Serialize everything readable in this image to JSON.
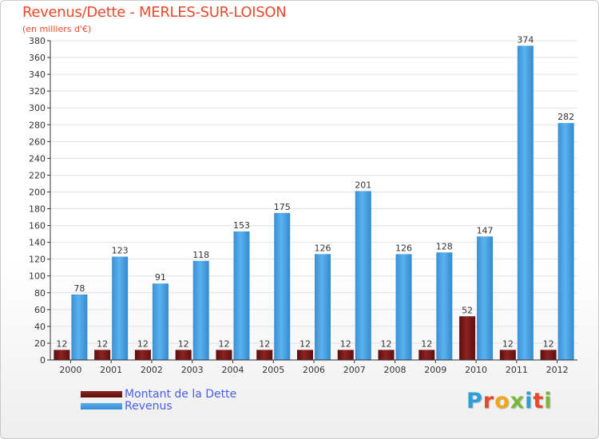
{
  "header": {
    "title": "Revenus/Dette - MERLES-SUR-LOISON",
    "subtitle": "(en milliers d'€)"
  },
  "legend": {
    "debt_label": "Montant de la Dette",
    "revenue_label": "Revenus"
  },
  "logo": {
    "letters": [
      "P",
      "r",
      "o",
      "x",
      "i",
      "t",
      "i"
    ],
    "colors": [
      "#2b9fd8",
      "#e8492c",
      "#f2a71b",
      "#7ab83c",
      "#2b9fd8",
      "#e8492c",
      "#7ab83c"
    ]
  },
  "colors": {
    "debt": "#7a1717",
    "revenue": "#4ea6e6",
    "title": "#e8492c",
    "axis_text": "#333333",
    "grid": "#e2e2e2"
  },
  "chart_data": {
    "type": "bar",
    "title": "Revenus/Dette - MERLES-SUR-LOISON",
    "ylabel": "(en milliers d'€)",
    "xlabel": "",
    "categories": [
      "2000",
      "2001",
      "2002",
      "2003",
      "2004",
      "2005",
      "2006",
      "2007",
      "2008",
      "2009",
      "2010",
      "2011",
      "2012"
    ],
    "series": [
      {
        "name": "Montant de la Dette",
        "values": [
          12,
          12,
          12,
          12,
          12,
          12,
          12,
          12,
          12,
          12,
          52,
          12,
          12
        ]
      },
      {
        "name": "Revenus",
        "values": [
          78,
          123,
          91,
          118,
          153,
          175,
          126,
          201,
          126,
          128,
          147,
          374,
          282
        ]
      }
    ],
    "ylim": [
      0,
      380
    ],
    "ytick_step": 20,
    "grid": true,
    "legend_position": "bottom-left"
  }
}
